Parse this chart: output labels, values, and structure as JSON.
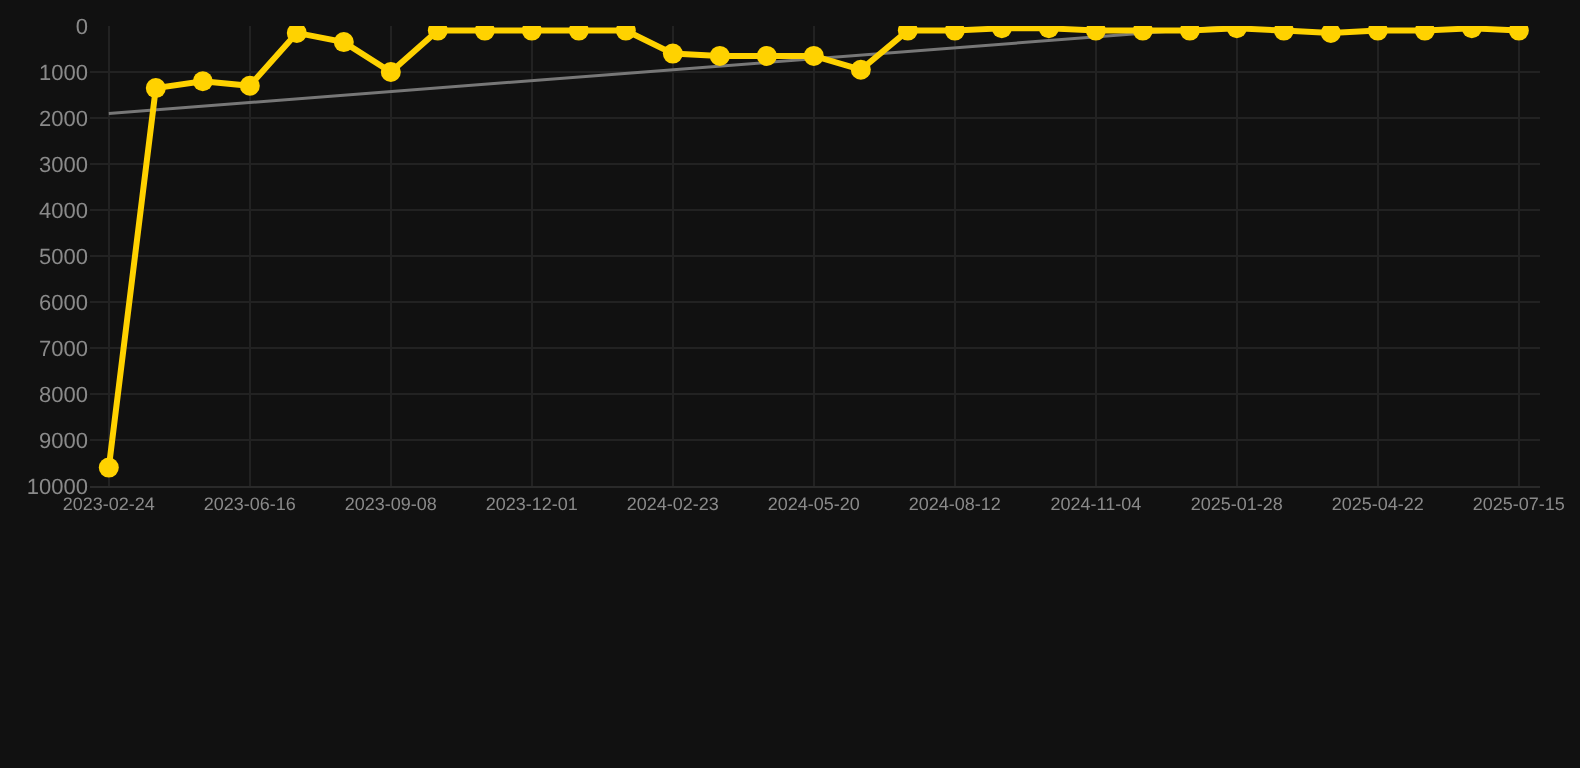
{
  "chart_data": {
    "type": "line",
    "categories": [
      "2023-02-24",
      null,
      null,
      "2023-06-16",
      null,
      null,
      "2023-09-08",
      null,
      null,
      "2023-12-01",
      null,
      null,
      "2024-02-23",
      null,
      null,
      "2024-05-20",
      null,
      null,
      "2024-08-12",
      null,
      null,
      "2024-11-04",
      null,
      null,
      "2025-01-28",
      null,
      null,
      "2025-04-22",
      null,
      null,
      "2025-07-15"
    ],
    "series": [
      {
        "color": "#ffd200",
        "marker": "circle",
        "values": [
          9600,
          1350,
          1200,
          1300,
          150,
          350,
          1000,
          100,
          100,
          100,
          100,
          100,
          600,
          650,
          650,
          650,
          950,
          100,
          100,
          50,
          50,
          100,
          100,
          100,
          50,
          100,
          150,
          100,
          100,
          50,
          100
        ]
      },
      {
        "color": "#777777",
        "marker": "none",
        "values": [
          1900,
          null,
          null,
          null,
          null,
          null,
          null,
          null,
          null,
          null,
          null,
          null,
          null,
          null,
          null,
          null,
          null,
          null,
          null,
          null,
          null,
          null,
          null,
          null,
          0,
          null,
          null,
          null,
          null,
          null,
          null
        ]
      }
    ],
    "ylim": [
      10000,
      0
    ],
    "yticks": [
      0,
      1000,
      2000,
      3000,
      4000,
      5000,
      6000,
      7000,
      8000,
      9000,
      10000
    ],
    "grid": true
  }
}
